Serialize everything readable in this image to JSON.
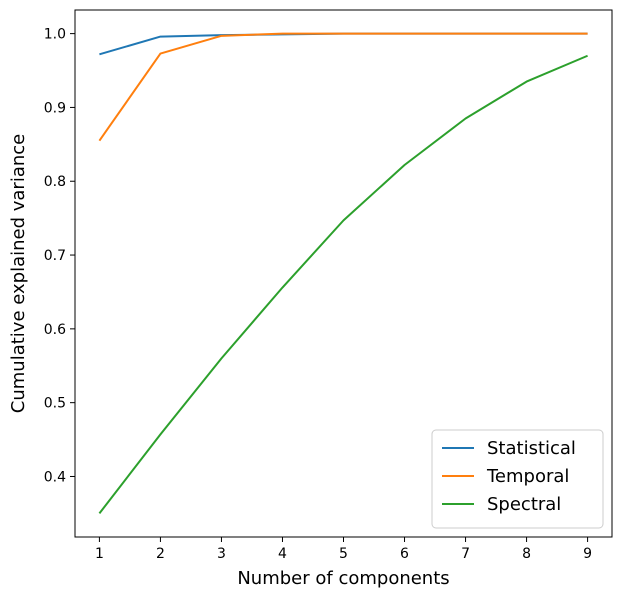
{
  "chart_data": {
    "type": "line",
    "title": "",
    "xlabel": "Number of components",
    "ylabel": "Cumulative explained variance",
    "x": [
      1,
      2,
      3,
      4,
      5,
      6,
      7,
      8,
      9
    ],
    "xlim": [
      0.6,
      9.4
    ],
    "ylim": [
      0.318,
      1.032
    ],
    "xticks": [
      1,
      2,
      3,
      4,
      5,
      6,
      7,
      8,
      9
    ],
    "yticks": [
      0.4,
      0.5,
      0.6,
      0.7,
      0.8,
      0.9,
      1.0
    ],
    "ytick_labels": [
      "0.4",
      "0.5",
      "0.6",
      "0.7",
      "0.8",
      "0.9",
      "1.0"
    ],
    "grid": false,
    "legend_position": "bottom-right",
    "series": [
      {
        "name": "Statistical",
        "color": "#1f77b4",
        "values": [
          0.972,
          0.996,
          0.998,
          0.999,
          1.0,
          1.0,
          1.0,
          1.0,
          1.0
        ]
      },
      {
        "name": "Temporal",
        "color": "#ff7f0e",
        "values": [
          0.855,
          0.973,
          0.997,
          1.0,
          1.0,
          1.0,
          1.0,
          1.0,
          1.0
        ]
      },
      {
        "name": "Spectral",
        "color": "#2ca02c",
        "values": [
          0.35,
          0.457,
          0.56,
          0.656,
          0.747,
          0.822,
          0.885,
          0.935,
          0.97
        ]
      }
    ]
  }
}
